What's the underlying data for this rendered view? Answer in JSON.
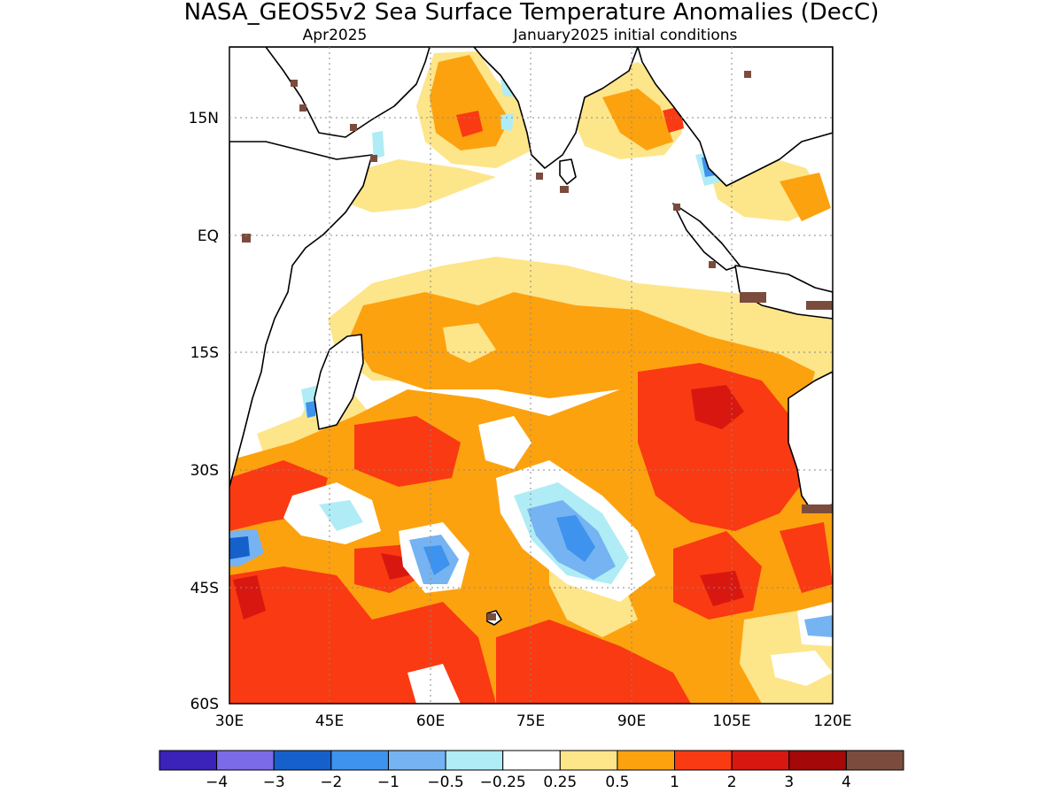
{
  "title": "NASA_GEOS5v2 Sea Surface Temperature Anomalies (DecC)",
  "subtitle_left": "Apr2025",
  "subtitle_right": "January2025 initial conditions",
  "map": {
    "lat_labels": [
      "15N",
      "EQ",
      "15S",
      "30S",
      "45S",
      "60S"
    ],
    "lon_labels": [
      "30E",
      "45E",
      "60E",
      "75E",
      "90E",
      "105E",
      "120E"
    ]
  },
  "colorbar": {
    "colors": [
      "#3b22b8",
      "#7b6be8",
      "#1660cc",
      "#3d93ee",
      "#76b3f2",
      "#b0ecf5",
      "#ffffff",
      "#fde58a",
      "#fca20f",
      "#fa3a12",
      "#d81810",
      "#a40808",
      "#7b4c3e"
    ],
    "labels": [
      "−4",
      "−3",
      "−2",
      "−1",
      "−0.5",
      "−0.25",
      "0.25",
      "0.5",
      "1",
      "2",
      "3",
      "4"
    ]
  }
}
